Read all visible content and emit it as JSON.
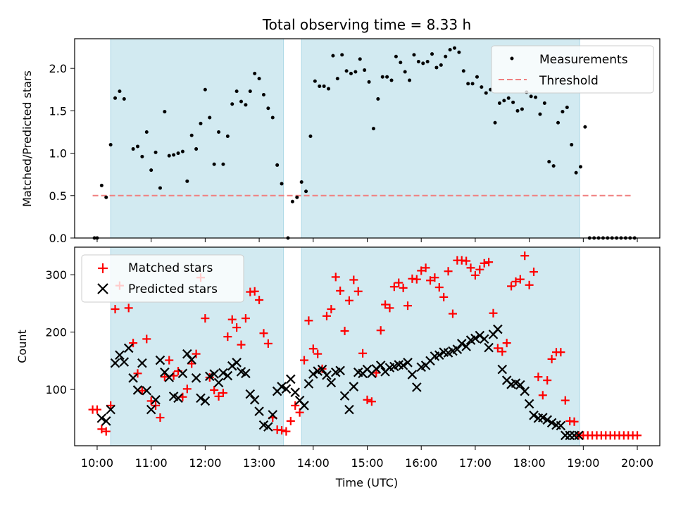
{
  "chart_data": [
    {
      "type": "scatter",
      "title": "Total observing time = 8.33 h",
      "ylabel": "Matched/Predicted stars",
      "xlabel": "",
      "xlim": [
        "09:35",
        "20:25"
      ],
      "ylim": [
        0,
        2.35
      ],
      "yticks": [
        "0.0",
        "0.5",
        "1.0",
        "1.5",
        "2.0"
      ],
      "shaded_intervals": [
        [
          "10:15",
          "13:27"
        ],
        [
          "13:47",
          "18:56"
        ]
      ],
      "shade_color": "#add8e6",
      "legend_position": "top-right",
      "series": [
        {
          "name": "Measurements",
          "style": "dot",
          "color": "#000000",
          "x": [
            "09:57",
            "10:00",
            "10:05",
            "10:10",
            "10:15",
            "10:20",
            "10:25",
            "10:30",
            "10:40",
            "10:45",
            "10:50",
            "10:55",
            "11:00",
            "11:05",
            "11:10",
            "11:15",
            "11:20",
            "11:25",
            "11:30",
            "11:35",
            "11:40",
            "11:45",
            "11:50",
            "11:55",
            "12:00",
            "12:05",
            "12:10",
            "12:15",
            "12:20",
            "12:25",
            "12:30",
            "12:35",
            "12:40",
            "12:45",
            "12:50",
            "12:55",
            "13:00",
            "13:05",
            "13:10",
            "13:15",
            "13:20",
            "13:25",
            "13:32",
            "13:37",
            "13:42",
            "13:47",
            "13:52",
            "13:57",
            "14:02",
            "14:07",
            "14:12",
            "14:17",
            "14:22",
            "14:27",
            "14:32",
            "14:37",
            "14:42",
            "14:47",
            "14:52",
            "14:57",
            "15:02",
            "15:07",
            "15:12",
            "15:17",
            "15:22",
            "15:27",
            "15:32",
            "15:37",
            "15:42",
            "15:47",
            "15:52",
            "15:57",
            "16:02",
            "16:07",
            "16:12",
            "16:17",
            "16:22",
            "16:27",
            "16:32",
            "16:37",
            "16:42",
            "16:47",
            "16:52",
            "16:57",
            "17:02",
            "17:07",
            "17:12",
            "17:17",
            "17:22",
            "17:27",
            "17:32",
            "17:37",
            "17:42",
            "17:47",
            "17:52",
            "17:57",
            "18:02",
            "18:07",
            "18:12",
            "18:17",
            "18:22",
            "18:27",
            "18:32",
            "18:37",
            "18:42",
            "18:47",
            "18:52",
            "18:57",
            "19:02",
            "19:07",
            "19:12",
            "19:17",
            "19:22",
            "19:27",
            "19:32",
            "19:37",
            "19:42",
            "19:47",
            "19:52",
            "19:57"
          ],
          "y": [
            0.0,
            0.0,
            0.62,
            0.48,
            1.1,
            1.65,
            1.73,
            1.64,
            1.05,
            1.08,
            0.96,
            1.25,
            0.8,
            1.01,
            0.59,
            1.49,
            0.97,
            0.98,
            1.0,
            1.02,
            0.67,
            1.21,
            1.05,
            1.35,
            1.75,
            1.42,
            0.87,
            1.25,
            0.87,
            1.2,
            1.58,
            1.73,
            1.61,
            1.57,
            1.73,
            1.94,
            1.88,
            1.69,
            1.53,
            1.42,
            0.86,
            0.64,
            0.0,
            0.43,
            0.48,
            0.66,
            0.55,
            1.2,
            1.85,
            1.79,
            1.79,
            1.76,
            2.15,
            1.88,
            2.16,
            1.97,
            1.94,
            1.96,
            2.11,
            1.98,
            1.84,
            1.29,
            1.64,
            1.9,
            1.9,
            1.86,
            2.14,
            2.07,
            1.96,
            1.86,
            2.16,
            2.08,
            2.06,
            2.08,
            2.17,
            2.01,
            2.04,
            2.14,
            2.22,
            2.24,
            2.19,
            1.97,
            1.82,
            1.82,
            1.9,
            1.78,
            1.71,
            1.75,
            1.36,
            1.59,
            1.62,
            1.65,
            1.6,
            1.5,
            1.52,
            1.72,
            1.67,
            1.66,
            1.46,
            1.59,
            0.9,
            0.85,
            1.36,
            1.49,
            1.54,
            1.1,
            0.77,
            0.84,
            1.31,
            0.0,
            0.0,
            0.0,
            0.0,
            0.0,
            0.0,
            0.0,
            0.0,
            0.0,
            0.0,
            0.0
          ]
        },
        {
          "name": "Threshold",
          "style": "dashed-line",
          "color": "#f08080",
          "x": [
            "09:55",
            "19:55"
          ],
          "y": [
            0.5,
            0.5
          ]
        }
      ]
    },
    {
      "type": "scatter",
      "title": "",
      "ylabel": "Count",
      "xlabel": "Time (UTC)",
      "xlim": [
        "09:35",
        "20:25"
      ],
      "ylim": [
        2,
        348
      ],
      "yticks": [
        "100",
        "200",
        "300"
      ],
      "xticks": [
        "10:00",
        "11:00",
        "12:00",
        "13:00",
        "14:00",
        "15:00",
        "16:00",
        "17:00",
        "18:00",
        "19:00",
        "20:00"
      ],
      "shaded_intervals": [
        [
          "10:15",
          "13:27"
        ],
        [
          "13:47",
          "18:56"
        ]
      ],
      "shade_color": "#add8e6",
      "legend_position": "top-left",
      "series": [
        {
          "name": "Matched stars",
          "style": "plus",
          "color": "#ff0000",
          "x": [
            "09:55",
            "10:00",
            "10:05",
            "10:10",
            "10:15",
            "10:20",
            "10:25",
            "10:35",
            "10:40",
            "10:45",
            "10:50",
            "10:55",
            "11:00",
            "11:05",
            "11:10",
            "11:15",
            "11:20",
            "11:25",
            "11:30",
            "11:35",
            "11:40",
            "11:45",
            "11:50",
            "11:55",
            "12:00",
            "12:05",
            "12:10",
            "12:15",
            "12:20",
            "12:25",
            "12:30",
            "12:35",
            "12:40",
            "12:45",
            "12:50",
            "12:55",
            "13:00",
            "13:05",
            "13:10",
            "13:15",
            "13:20",
            "13:25",
            "13:30",
            "13:35",
            "13:40",
            "13:45",
            "13:50",
            "13:55",
            "14:00",
            "14:05",
            "14:10",
            "14:15",
            "14:20",
            "14:25",
            "14:30",
            "14:35",
            "14:40",
            "14:45",
            "14:50",
            "14:55",
            "15:00",
            "15:05",
            "15:10",
            "15:15",
            "15:20",
            "15:25",
            "15:30",
            "15:35",
            "15:40",
            "15:45",
            "15:50",
            "15:55",
            "16:00",
            "16:05",
            "16:10",
            "16:15",
            "16:20",
            "16:25",
            "16:30",
            "16:35",
            "16:40",
            "16:45",
            "16:50",
            "16:55",
            "17:00",
            "17:05",
            "17:10",
            "17:15",
            "17:20",
            "17:25",
            "17:30",
            "17:35",
            "17:40",
            "17:45",
            "17:50",
            "17:55",
            "18:00",
            "18:05",
            "18:10",
            "18:15",
            "18:20",
            "18:25",
            "18:30",
            "18:35",
            "18:40",
            "18:45",
            "18:50",
            "18:55",
            "19:00",
            "19:05",
            "19:10",
            "19:15",
            "19:20",
            "19:25",
            "19:30",
            "19:35",
            "19:40",
            "19:45",
            "19:50",
            "19:55",
            "20:00"
          ],
          "y": [
            65,
            65,
            31,
            27,
            72,
            240,
            281,
            242,
            181,
            128,
            98,
            188,
            80,
            72,
            51,
            122,
            151,
            124,
            132,
            87,
            101,
            145,
            162,
            295,
            224,
            121,
            99,
            88,
            94,
            192,
            222,
            208,
            178,
            224,
            270,
            271,
            256,
            198,
            180,
            51,
            30,
            29,
            27,
            45,
            72,
            60,
            151,
            220,
            171,
            162,
            136,
            228,
            240,
            296,
            272,
            202,
            255,
            291,
            271,
            163,
            82,
            79,
            129,
            203,
            248,
            242,
            279,
            286,
            277,
            246,
            293,
            292,
            307,
            312,
            290,
            295,
            278,
            261,
            306,
            232,
            325,
            325,
            324,
            312,
            299,
            309,
            320,
            322,
            233,
            172,
            166,
            181,
            280,
            288,
            292,
            333,
            282,
            305,
            122,
            90,
            116,
            153,
            165,
            165,
            81,
            45,
            44,
            20,
            20,
            20,
            20,
            20,
            20,
            20,
            20,
            20,
            20,
            20,
            20,
            20,
            20
          ]
        },
        {
          "name": "Predicted stars",
          "style": "x",
          "color": "#000000",
          "x": [
            "10:05",
            "10:10",
            "10:15",
            "10:20",
            "10:25",
            "10:30",
            "10:35",
            "10:40",
            "10:45",
            "10:50",
            "10:55",
            "11:00",
            "11:05",
            "11:10",
            "11:15",
            "11:20",
            "11:25",
            "11:30",
            "11:35",
            "11:40",
            "11:45",
            "11:50",
            "11:55",
            "12:00",
            "12:05",
            "12:10",
            "12:15",
            "12:20",
            "12:25",
            "12:30",
            "12:35",
            "12:40",
            "12:45",
            "12:50",
            "12:55",
            "13:00",
            "13:05",
            "13:10",
            "13:15",
            "13:20",
            "13:25",
            "13:30",
            "13:35",
            "13:40",
            "13:45",
            "13:50",
            "13:55",
            "14:00",
            "14:05",
            "14:10",
            "14:15",
            "14:20",
            "14:25",
            "14:30",
            "14:35",
            "14:40",
            "14:45",
            "14:50",
            "14:55",
            "15:00",
            "15:05",
            "15:10",
            "15:15",
            "15:20",
            "15:25",
            "15:30",
            "15:35",
            "15:40",
            "15:45",
            "15:50",
            "15:55",
            "16:00",
            "16:05",
            "16:10",
            "16:15",
            "16:20",
            "16:25",
            "16:30",
            "16:35",
            "16:40",
            "16:45",
            "16:50",
            "16:55",
            "17:00",
            "17:05",
            "17:10",
            "17:15",
            "17:20",
            "17:25",
            "17:30",
            "17:35",
            "17:40",
            "17:45",
            "17:50",
            "17:55",
            "18:00",
            "18:05",
            "18:10",
            "18:15",
            "18:20",
            "18:25",
            "18:30",
            "18:35",
            "18:40",
            "18:45",
            "18:50",
            "18:55"
          ],
          "y": [
            50,
            45,
            65,
            146,
            160,
            148,
            172,
            120,
            99,
            146,
            98,
            65,
            82,
            151,
            130,
            121,
            88,
            85,
            128,
            162,
            152,
            120,
            85,
            80,
            123,
            127,
            112,
            129,
            124,
            141,
            147,
            131,
            128,
            92,
            82,
            62,
            38,
            35,
            56,
            97,
            105,
            101,
            118,
            95,
            81,
            72,
            110,
            127,
            132,
            135,
            125,
            112,
            130,
            133,
            89,
            65,
            105,
            130,
            128,
            135,
            128,
            136,
            142,
            131,
            138,
            140,
            143,
            142,
            147,
            126,
            104,
            139,
            142,
            150,
            158,
            160,
            165,
            164,
            167,
            170,
            180,
            175,
            186,
            189,
            194,
            188,
            173,
            196,
            205,
            135,
            116,
            109,
            111,
            108,
            97,
            75,
            55,
            50,
            51,
            47,
            42,
            38,
            37,
            20,
            20,
            20,
            20
          ]
        }
      ]
    }
  ]
}
